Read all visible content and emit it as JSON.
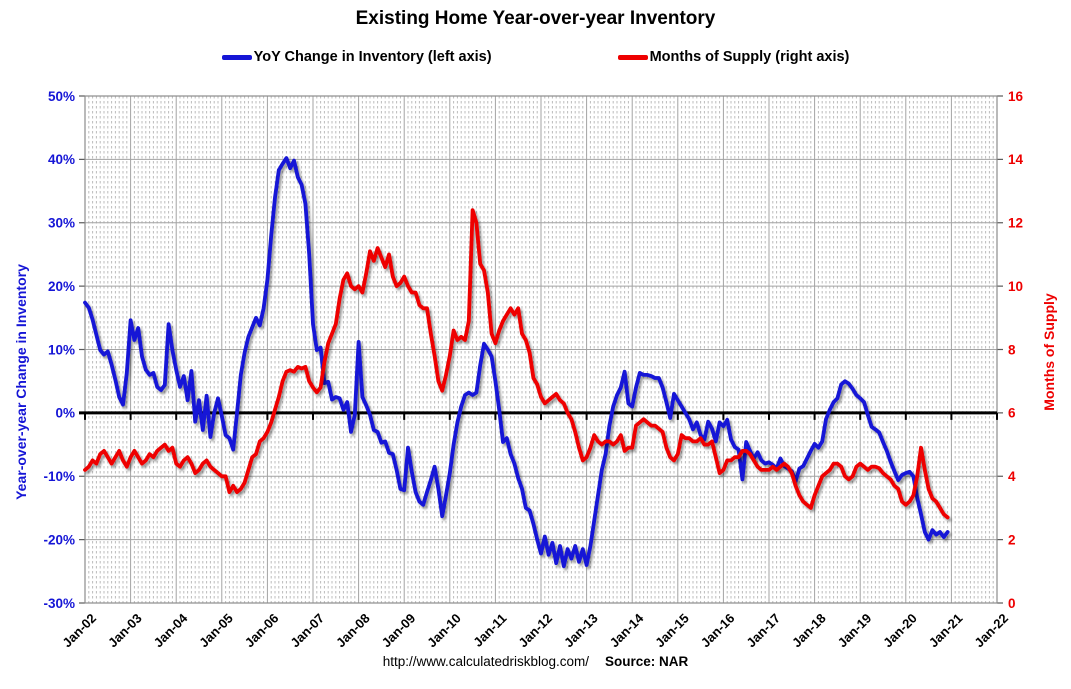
{
  "title": "Existing Home Year-over-year Inventory",
  "footer": {
    "url": "http://www.calculatedriskblog.com/",
    "source": "Source: NAR"
  },
  "chart_data": {
    "type": "line",
    "frequency": "monthly",
    "grid": "on",
    "legend_position": "top",
    "x_tick_labels": [
      "Jan-02",
      "Jan-03",
      "Jan-04",
      "Jan-05",
      "Jan-06",
      "Jan-07",
      "Jan-08",
      "Jan-09",
      "Jan-10",
      "Jan-11",
      "Jan-12",
      "Jan-13",
      "Jan-14",
      "Jan-15",
      "Jan-16",
      "Jan-17",
      "Jan-18",
      "Jan-19",
      "Jan-20",
      "Jan-21",
      "Jan-22"
    ],
    "left_axis": {
      "title": "Year-over-year Change in Inventory",
      "tick_labels": [
        "50%",
        "40%",
        "30%",
        "20%",
        "10%",
        "0%",
        "-10%",
        "-20%",
        "-30%"
      ],
      "min": -30,
      "max": 50,
      "color": "#1515d6"
    },
    "right_axis": {
      "title": "Months of Supply",
      "tick_labels": [
        "16",
        "14",
        "12",
        "10",
        "8",
        "6",
        "4",
        "2",
        "0"
      ],
      "min": 0,
      "max": 16,
      "color": "#ee0000"
    },
    "zero_line_color": "#000000",
    "series": [
      {
        "name": "YoY Change in Inventory (left axis)",
        "axis": "left",
        "color": "#1515d6",
        "start": "Jan-2002",
        "values": [
          17.4,
          16.6,
          14.7,
          12.3,
          9.9,
          9.2,
          9.7,
          7.6,
          5.2,
          2.5,
          1.3,
          6.3,
          14.6,
          11.5,
          13.4,
          8.9,
          6.8,
          6.0,
          6.3,
          4.1,
          3.6,
          4.4,
          14.0,
          9.9,
          6.8,
          4.1,
          5.8,
          2.0,
          6.6,
          -1.4,
          2.0,
          -2.7,
          2.7,
          -3.8,
          0.0,
          2.3,
          -0.5,
          -3.5,
          -4.0,
          -5.8,
          0.0,
          6.0,
          9.5,
          12.0,
          13.5,
          15.0,
          13.8,
          16.5,
          21.0,
          28.0,
          34.0,
          38.3,
          39.3,
          40.2,
          38.6,
          39.8,
          37.2,
          36.0,
          33.0,
          25.0,
          14.0,
          9.9,
          10.3,
          4.7,
          4.9,
          2.1,
          2.5,
          2.3,
          0.5,
          1.7,
          -3.0,
          -0.3,
          11.2,
          2.5,
          1.2,
          -0.3,
          -2.7,
          -3.0,
          -4.7,
          -4.5,
          -6.3,
          -6.5,
          -9.0,
          -12.0,
          -12.2,
          -5.5,
          -9.3,
          -12.5,
          -14.0,
          -14.5,
          -12.5,
          -10.6,
          -8.5,
          -12.0,
          -16.3,
          -13.0,
          -9.5,
          -5.0,
          -1.5,
          1.0,
          2.8,
          3.2,
          2.8,
          3.2,
          7.5,
          10.9,
          10.0,
          8.9,
          5.0,
          0.5,
          -4.6,
          -4.0,
          -6.5,
          -8.0,
          -10.3,
          -12.0,
          -15.0,
          -15.4,
          -17.5,
          -20.0,
          -22.2,
          -19.5,
          -22.4,
          -20.5,
          -23.7,
          -21.0,
          -24.2,
          -21.5,
          -23.0,
          -21.0,
          -23.5,
          -21.5,
          -24.0,
          -21.0,
          -17.0,
          -13.0,
          -9.0,
          -6.5,
          -2.0,
          1.0,
          2.8,
          4.0,
          6.5,
          1.5,
          1.0,
          4.0,
          6.3,
          6.0,
          6.0,
          5.8,
          5.5,
          5.5,
          4.0,
          1.7,
          -0.8,
          3.0,
          2.0,
          1.0,
          0.0,
          -1.0,
          -2.6,
          -1.5,
          -3.5,
          -4.2,
          -1.4,
          -2.5,
          -4.5,
          -1.5,
          -2.1,
          -1.1,
          -4.2,
          -5.4,
          -5.8,
          -10.5,
          -4.6,
          -6.0,
          -7.2,
          -6.2,
          -7.5,
          -8.0,
          -7.8,
          -8.2,
          -8.8,
          -7.2,
          -8.4,
          -8.8,
          -9.2,
          -10.8,
          -8.8,
          -8.4,
          -7.2,
          -6.0,
          -4.9,
          -5.5,
          -4.5,
          -1.0,
          0.5,
          1.7,
          2.3,
          4.5,
          5.0,
          4.6,
          3.8,
          2.8,
          2.3,
          1.7,
          -0.3,
          -2.2,
          -2.6,
          -3.1,
          -4.6,
          -6.0,
          -7.7,
          -9.2,
          -10.6,
          -9.8,
          -9.5,
          -9.3,
          -10.0,
          -13.4,
          -16.0,
          -18.8,
          -20.0,
          -18.5,
          -19.2,
          -18.8,
          -19.6,
          -18.8
        ]
      },
      {
        "name": "Months of Supply (right axis)",
        "axis": "right",
        "color": "#ee0000",
        "start": "Jan-2002",
        "values": [
          4.2,
          4.3,
          4.5,
          4.4,
          4.7,
          4.8,
          4.6,
          4.4,
          4.6,
          4.8,
          4.5,
          4.3,
          4.6,
          4.8,
          4.6,
          4.4,
          4.5,
          4.7,
          4.6,
          4.8,
          4.9,
          5.0,
          4.8,
          4.9,
          4.4,
          4.3,
          4.5,
          4.6,
          4.4,
          4.1,
          4.2,
          4.4,
          4.5,
          4.3,
          4.2,
          4.1,
          4.0,
          4.0,
          3.5,
          3.7,
          3.5,
          3.6,
          3.8,
          4.2,
          4.6,
          4.7,
          5.1,
          5.2,
          5.4,
          5.7,
          6.1,
          6.5,
          7.0,
          7.3,
          7.35,
          7.3,
          7.45,
          7.4,
          7.45,
          7.0,
          6.8,
          6.65,
          6.8,
          7.6,
          8.2,
          8.5,
          8.8,
          9.6,
          10.2,
          10.4,
          10.0,
          9.9,
          10.0,
          9.8,
          10.4,
          11.1,
          10.8,
          11.2,
          10.9,
          10.6,
          11.0,
          10.3,
          10.0,
          10.1,
          10.3,
          10.0,
          9.8,
          9.8,
          9.4,
          9.3,
          9.3,
          8.5,
          7.8,
          7.0,
          6.7,
          7.2,
          7.8,
          8.6,
          8.3,
          8.4,
          8.3,
          8.9,
          12.4,
          12.0,
          10.7,
          10.5,
          9.8,
          8.5,
          8.2,
          8.6,
          8.9,
          9.1,
          9.3,
          9.1,
          9.3,
          8.5,
          8.3,
          7.9,
          7.1,
          6.9,
          6.5,
          6.3,
          6.4,
          6.5,
          6.6,
          6.4,
          6.3,
          6.0,
          5.8,
          5.4,
          4.9,
          4.5,
          4.6,
          4.9,
          5.3,
          5.1,
          5.0,
          5.1,
          5.1,
          5.0,
          5.1,
          5.3,
          4.8,
          4.9,
          4.9,
          5.6,
          5.7,
          5.8,
          5.7,
          5.6,
          5.6,
          5.5,
          5.4,
          4.9,
          4.6,
          4.5,
          4.7,
          5.3,
          5.2,
          5.2,
          5.1,
          5.1,
          5.2,
          5.0,
          5.0,
          5.1,
          4.6,
          4.1,
          4.2,
          4.5,
          4.5,
          4.6,
          4.6,
          4.8,
          4.8,
          4.7,
          4.5,
          4.3,
          4.2,
          4.2,
          4.2,
          4.3,
          4.2,
          4.3,
          4.4,
          4.3,
          4.1,
          3.7,
          3.4,
          3.2,
          3.1,
          3.0,
          3.4,
          3.7,
          4.0,
          4.1,
          4.2,
          4.4,
          4.4,
          4.3,
          4.0,
          3.9,
          4.0,
          4.3,
          4.4,
          4.3,
          4.2,
          4.3,
          4.3,
          4.25,
          4.1,
          4.0,
          3.9,
          3.7,
          3.6,
          3.2,
          3.1,
          3.2,
          3.4,
          4.0,
          4.9,
          4.2,
          3.6,
          3.3,
          3.2,
          3.0,
          2.8,
          2.7
        ]
      }
    ]
  }
}
